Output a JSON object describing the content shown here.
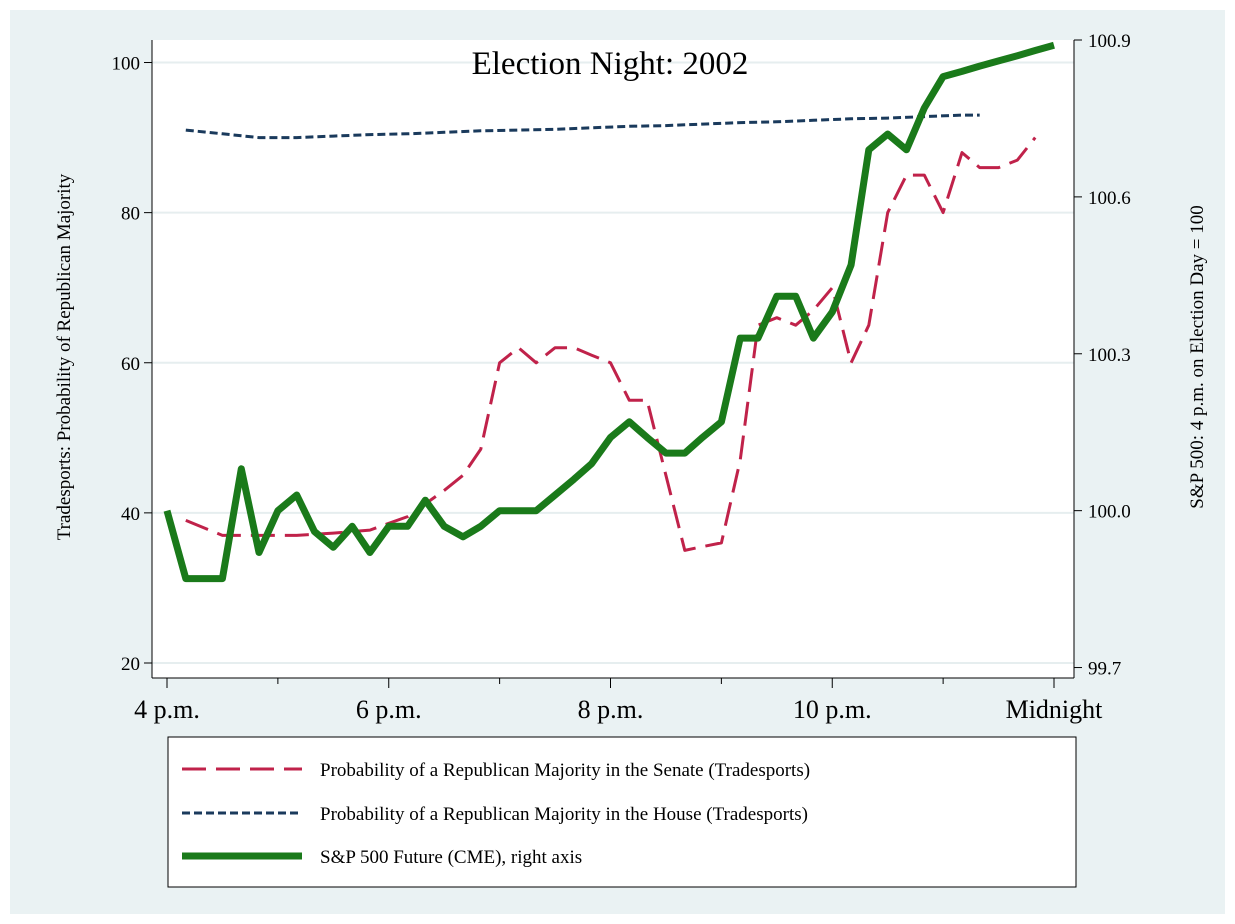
{
  "chart_data": {
    "type": "line",
    "title": "Election Night: 2002",
    "ylabel": "Tradesports: Probability of Republican Majority",
    "y2label": "S&P 500: 4 p.m. on Election Day = 100",
    "xlim": [
      16,
      24
    ],
    "ylim": [
      18,
      103
    ],
    "y2lim": [
      99.68,
      100.9
    ],
    "x_ticks": [
      16,
      18,
      20,
      22,
      24
    ],
    "x_tick_labels": [
      "4 p.m.",
      "6 p.m.",
      "8 p.m.",
      "10 p.m.",
      "Midnight"
    ],
    "y_ticks": [
      20,
      40,
      60,
      80,
      100
    ],
    "y_tick_labels": [
      "20",
      "40",
      "60",
      "80",
      "100"
    ],
    "y2_ticks": [
      99.7,
      100.0,
      100.3,
      100.6,
      100.9
    ],
    "y2_tick_labels": [
      "99.7",
      "100.0",
      "100.3",
      "100.6",
      "100.9"
    ],
    "grid": true,
    "legend_position": "bottom",
    "series": [
      {
        "name": "Probability of a Republican Majority in the Senate (Tradesports)",
        "axis": "left",
        "color": "#c0224a",
        "style": "long-dash",
        "x": [
          16.17,
          16.5,
          16.83,
          17.17,
          17.5,
          17.83,
          18.17,
          18.5,
          18.67,
          18.83,
          19.0,
          19.17,
          19.33,
          19.5,
          19.67,
          19.83,
          20.0,
          20.17,
          20.33,
          20.5,
          20.67,
          20.83,
          21.0,
          21.17,
          21.33,
          21.5,
          21.67,
          21.83,
          22.0,
          22.17,
          22.33,
          22.5,
          22.67,
          22.83,
          23.0,
          23.17,
          23.33,
          23.5,
          23.67,
          23.83
        ],
        "y": [
          39,
          37,
          37,
          37,
          37.3,
          37.7,
          39.5,
          43,
          45,
          48.5,
          60,
          62,
          60,
          62,
          62,
          61,
          60,
          55,
          55,
          45,
          35,
          35.5,
          36,
          47,
          65,
          66,
          65,
          67,
          70,
          60,
          65,
          80,
          85,
          85,
          80,
          88,
          86,
          86,
          87,
          90
        ]
      },
      {
        "name": "Probability of a Republican Majority in the House (Tradesports)",
        "axis": "left",
        "color": "#1a3a5c",
        "style": "short-dash",
        "x": [
          16.17,
          16.5,
          16.83,
          17.17,
          17.5,
          17.83,
          18.17,
          18.5,
          18.83,
          19.17,
          19.5,
          19.83,
          20.17,
          20.5,
          20.83,
          21.17,
          21.5,
          21.83,
          22.17,
          22.5,
          22.83,
          23.17,
          23.33
        ],
        "y": [
          91,
          90.5,
          90,
          90,
          90.2,
          90.4,
          90.5,
          90.7,
          90.9,
          91,
          91.1,
          91.3,
          91.5,
          91.6,
          91.8,
          92,
          92.1,
          92.3,
          92.5,
          92.6,
          92.8,
          93,
          93
        ]
      },
      {
        "name": "S&P 500 Future (CME), right axis",
        "axis": "right",
        "color": "#1a7a1a",
        "style": "solid-thick",
        "x": [
          16.0,
          16.17,
          16.33,
          16.5,
          16.67,
          16.83,
          17.0,
          17.17,
          17.33,
          17.5,
          17.67,
          17.83,
          18.0,
          18.17,
          18.33,
          18.5,
          18.67,
          18.83,
          19.0,
          19.17,
          19.33,
          19.5,
          19.67,
          19.83,
          20.0,
          20.17,
          20.33,
          20.5,
          20.67,
          20.83,
          21.0,
          21.17,
          21.33,
          21.5,
          21.67,
          21.83,
          22.0,
          22.17,
          22.33,
          22.5,
          22.67,
          22.83,
          23.0,
          23.17,
          23.33,
          23.5,
          23.67,
          23.83,
          24.0
        ],
        "y": [
          100.0,
          99.87,
          99.87,
          99.87,
          100.08,
          99.92,
          100.0,
          100.03,
          99.96,
          99.93,
          99.97,
          99.92,
          99.97,
          99.97,
          100.02,
          99.97,
          99.95,
          99.97,
          100.0,
          100.0,
          100.0,
          100.03,
          100.06,
          100.09,
          100.14,
          100.17,
          100.14,
          100.11,
          100.11,
          100.14,
          100.17,
          100.33,
          100.33,
          100.41,
          100.41,
          100.33,
          100.38,
          100.47,
          100.69,
          100.72,
          100.69,
          100.77,
          100.83,
          100.84,
          100.85,
          100.86,
          100.87,
          100.88,
          100.89
        ]
      }
    ],
    "legend_entries": [
      "Probability of a Republican Majority in the Senate (Tradesports)",
      "Probability of a Republican Majority in the House (Tradesports)",
      "S&P 500 Future (CME), right axis"
    ]
  }
}
